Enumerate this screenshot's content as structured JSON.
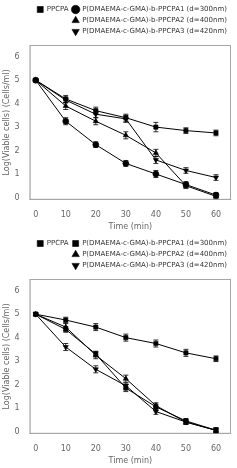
{
  "chart_data": [
    {
      "type": "line",
      "xlabel": "Time (min)",
      "ylabel": "Log(Viable cells) (Cells/ml)",
      "x": [
        0,
        10,
        20,
        30,
        40,
        50,
        60
      ],
      "series": [
        {
          "name": "PPCPA",
          "marker": "square",
          "values": [
            5.0,
            4.2,
            3.7,
            3.4,
            3.0,
            2.85,
            2.75
          ],
          "yerr": [
            0.0,
            0.15,
            0.15,
            0.15,
            0.2,
            0.12,
            0.12
          ]
        },
        {
          "name": "P(DMAEMA-c-GMA)-b-PPCPA1 (d=300nm)",
          "marker": "circle",
          "values": [
            5.0,
            3.25,
            2.25,
            1.45,
            1.0,
            0.55,
            0.1
          ],
          "yerr": [
            0.0,
            0.15,
            0.12,
            0.12,
            0.15,
            0.12,
            0.1
          ]
        },
        {
          "name": "P(DMAEMA-c-GMA)-b-PPCPA2 (d=400nm)",
          "marker": "triangle-up",
          "values": [
            5.0,
            3.9,
            3.25,
            2.65,
            1.9,
            0.5,
            0.05
          ],
          "yerr": [
            0.0,
            0.15,
            0.15,
            0.15,
            0.15,
            0.12,
            0.1
          ]
        },
        {
          "name": "P(DMAEMA-c-GMA)-b-PPCPA3 (d=420nm)",
          "marker": "triangle-down",
          "values": [
            5.0,
            4.15,
            3.55,
            3.35,
            1.6,
            1.15,
            0.85
          ],
          "yerr": [
            0.0,
            0.12,
            0.15,
            0.15,
            0.15,
            0.12,
            0.12
          ]
        }
      ],
      "color": "black",
      "xlim": [
        -2,
        65
      ],
      "xticks": [
        0,
        10,
        20,
        30,
        40,
        50,
        60
      ],
      "ylim": [
        -0.1,
        6.5
      ],
      "yticks": [
        0,
        1,
        2,
        3,
        4,
        5,
        6
      ],
      "grid": false,
      "legend": "upper right"
    },
    {
      "type": "line",
      "xlabel": "Time (min)",
      "ylabel": "Log(Viable cells) (Cells/ml)",
      "x": [
        0,
        10,
        20,
        30,
        40,
        50,
        60
      ],
      "series": [
        {
          "name": "PPCPA",
          "marker": "square",
          "values": [
            5.0,
            4.75,
            4.45,
            4.0,
            3.75,
            3.35,
            3.1
          ],
          "yerr": [
            0.0,
            0.12,
            0.15,
            0.15,
            0.15,
            0.15,
            0.12
          ]
        },
        {
          "name": "P(DMAEMA-c-GMA)-b-PPCPA1 (d=300nm)",
          "marker": "square",
          "values": [
            5.0,
            4.35,
            3.3,
            1.85,
            1.05,
            0.45,
            0.05
          ],
          "yerr": [
            0.0,
            0.12,
            0.12,
            0.15,
            0.12,
            0.1,
            0.1
          ]
        },
        {
          "name": "P(DMAEMA-c-GMA)-b-PPCPA2 (d=400nm)",
          "marker": "triangle-up",
          "values": [
            5.0,
            4.45,
            3.25,
            2.25,
            1.1,
            0.4,
            0.05
          ],
          "yerr": [
            0.0,
            0.15,
            0.15,
            0.15,
            0.12,
            0.1,
            0.1
          ]
        },
        {
          "name": "P(DMAEMA-c-GMA)-b-PPCPA3 (d=420nm)",
          "marker": "triangle-down",
          "values": [
            5.0,
            3.6,
            2.65,
            1.95,
            0.85,
            0.4,
            0.05
          ],
          "yerr": [
            0.0,
            0.15,
            0.15,
            0.12,
            0.12,
            0.1,
            0.1
          ]
        }
      ],
      "color": "black",
      "xlim": [
        -2,
        65
      ],
      "xticks": [
        0,
        10,
        20,
        30,
        40,
        50,
        60
      ],
      "ylim": [
        -0.1,
        6.5
      ],
      "yticks": [
        0,
        1,
        2,
        3,
        4,
        5,
        6
      ],
      "grid": false,
      "legend": "upper right"
    }
  ]
}
